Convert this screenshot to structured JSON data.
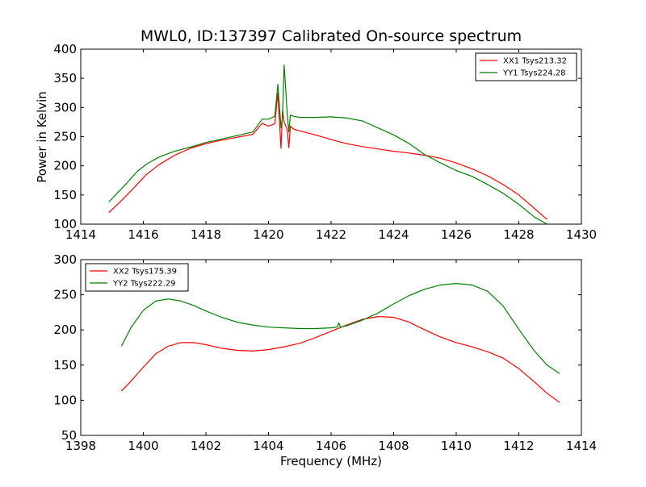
{
  "figure": {
    "title": "MWL0, ID:137397 Calibrated On-source spectrum",
    "ylabel": "Power in Kelvin",
    "xlabel": "Frequency (MHz)"
  },
  "chart_data": [
    {
      "type": "line",
      "title": "MWL0, ID:137397 Calibrated On-source spectrum",
      "xlabel": "",
      "ylabel": "Power in Kelvin",
      "xlim": [
        1414,
        1430
      ],
      "ylim": [
        100,
        400
      ],
      "xticks": [
        1414,
        1416,
        1418,
        1420,
        1422,
        1424,
        1426,
        1428,
        1430
      ],
      "yticks": [
        100,
        150,
        200,
        250,
        300,
        350,
        400
      ],
      "grid": false,
      "legend_position": "top-right",
      "series": [
        {
          "name": "XX1 Tsys213.32",
          "color": "#ff0000",
          "x": [
            1414.9,
            1415.2,
            1415.5,
            1415.8,
            1416.1,
            1416.5,
            1417.0,
            1417.5,
            1418.0,
            1418.5,
            1419.0,
            1419.5,
            1419.8,
            1420.0,
            1420.2,
            1420.3,
            1420.4,
            1420.45,
            1420.5,
            1420.6,
            1420.65,
            1420.7,
            1420.8,
            1421.0,
            1421.5,
            1422.0,
            1422.5,
            1423.0,
            1423.5,
            1424.0,
            1424.5,
            1425.0,
            1425.5,
            1426.0,
            1426.5,
            1427.0,
            1427.5,
            1428.0,
            1428.5,
            1428.9
          ],
          "y": [
            120,
            135,
            151,
            168,
            185,
            202,
            218,
            230,
            238,
            244,
            249,
            254,
            273,
            268,
            272,
            325,
            230,
            296,
            275,
            262,
            231,
            268,
            263,
            260,
            253,
            245,
            238,
            233,
            229,
            225,
            222,
            218,
            213,
            205,
            195,
            183,
            168,
            150,
            127,
            108
          ]
        },
        {
          "name": "YY1 Tsys224.28",
          "color": "#008000",
          "x": [
            1414.9,
            1415.2,
            1415.5,
            1415.8,
            1416.1,
            1416.5,
            1417.0,
            1417.5,
            1418.0,
            1418.5,
            1419.0,
            1419.5,
            1419.8,
            1420.0,
            1420.2,
            1420.3,
            1420.4,
            1420.45,
            1420.5,
            1420.6,
            1420.65,
            1420.7,
            1420.8,
            1421.0,
            1421.5,
            1422.0,
            1422.5,
            1423.0,
            1423.5,
            1424.0,
            1424.5,
            1425.0,
            1425.5,
            1426.0,
            1426.5,
            1427.0,
            1427.5,
            1428.0,
            1428.5,
            1428.9
          ],
          "y": [
            138,
            155,
            172,
            190,
            203,
            215,
            225,
            232,
            240,
            246,
            252,
            258,
            280,
            280,
            285,
            340,
            265,
            285,
            373,
            290,
            258,
            287,
            285,
            283,
            283,
            284,
            282,
            277,
            265,
            253,
            238,
            219,
            205,
            192,
            182,
            168,
            153,
            134,
            112,
            100
          ]
        }
      ]
    },
    {
      "type": "line",
      "title": "",
      "xlabel": "Frequency (MHz)",
      "ylabel": "",
      "xlim": [
        1398,
        1414
      ],
      "ylim": [
        50,
        300
      ],
      "xticks": [
        1398,
        1400,
        1402,
        1404,
        1406,
        1408,
        1410,
        1412,
        1414
      ],
      "yticks": [
        50,
        100,
        150,
        200,
        250,
        300
      ],
      "grid": false,
      "legend_position": "top-left",
      "series": [
        {
          "name": "XX2 Tsys175.39",
          "color": "#ff0000",
          "x": [
            1399.3,
            1399.6,
            1400.0,
            1400.4,
            1400.8,
            1401.2,
            1401.6,
            1402.0,
            1402.5,
            1403.0,
            1403.5,
            1404.0,
            1404.5,
            1405.0,
            1405.5,
            1406.0,
            1406.5,
            1407.0,
            1407.5,
            1408.0,
            1408.5,
            1409.0,
            1409.5,
            1410.0,
            1410.5,
            1411.0,
            1411.5,
            1412.0,
            1412.5,
            1412.9,
            1413.3
          ],
          "y": [
            113,
            127,
            147,
            166,
            177,
            182,
            182,
            179,
            174,
            171,
            170,
            172,
            176,
            181,
            189,
            198,
            207,
            215,
            219,
            218,
            211,
            200,
            190,
            182,
            176,
            169,
            160,
            145,
            126,
            110,
            97
          ]
        },
        {
          "name": "YY2 Tsys222.29",
          "color": "#008000",
          "x": [
            1399.3,
            1399.6,
            1400.0,
            1400.4,
            1400.8,
            1401.2,
            1401.6,
            1402.0,
            1402.5,
            1403.0,
            1403.5,
            1404.0,
            1404.5,
            1405.0,
            1405.5,
            1406.0,
            1406.2,
            1406.25,
            1406.3,
            1406.5,
            1407.0,
            1407.5,
            1408.0,
            1408.5,
            1409.0,
            1409.5,
            1410.0,
            1410.5,
            1411.0,
            1411.5,
            1412.0,
            1412.5,
            1412.9,
            1413.3
          ],
          "y": [
            177,
            203,
            228,
            241,
            244,
            241,
            235,
            227,
            218,
            211,
            207,
            204,
            203,
            202,
            202,
            203,
            204,
            210,
            204,
            206,
            214,
            224,
            237,
            249,
            258,
            264,
            266,
            264,
            255,
            234,
            201,
            170,
            150,
            138
          ]
        }
      ]
    }
  ]
}
